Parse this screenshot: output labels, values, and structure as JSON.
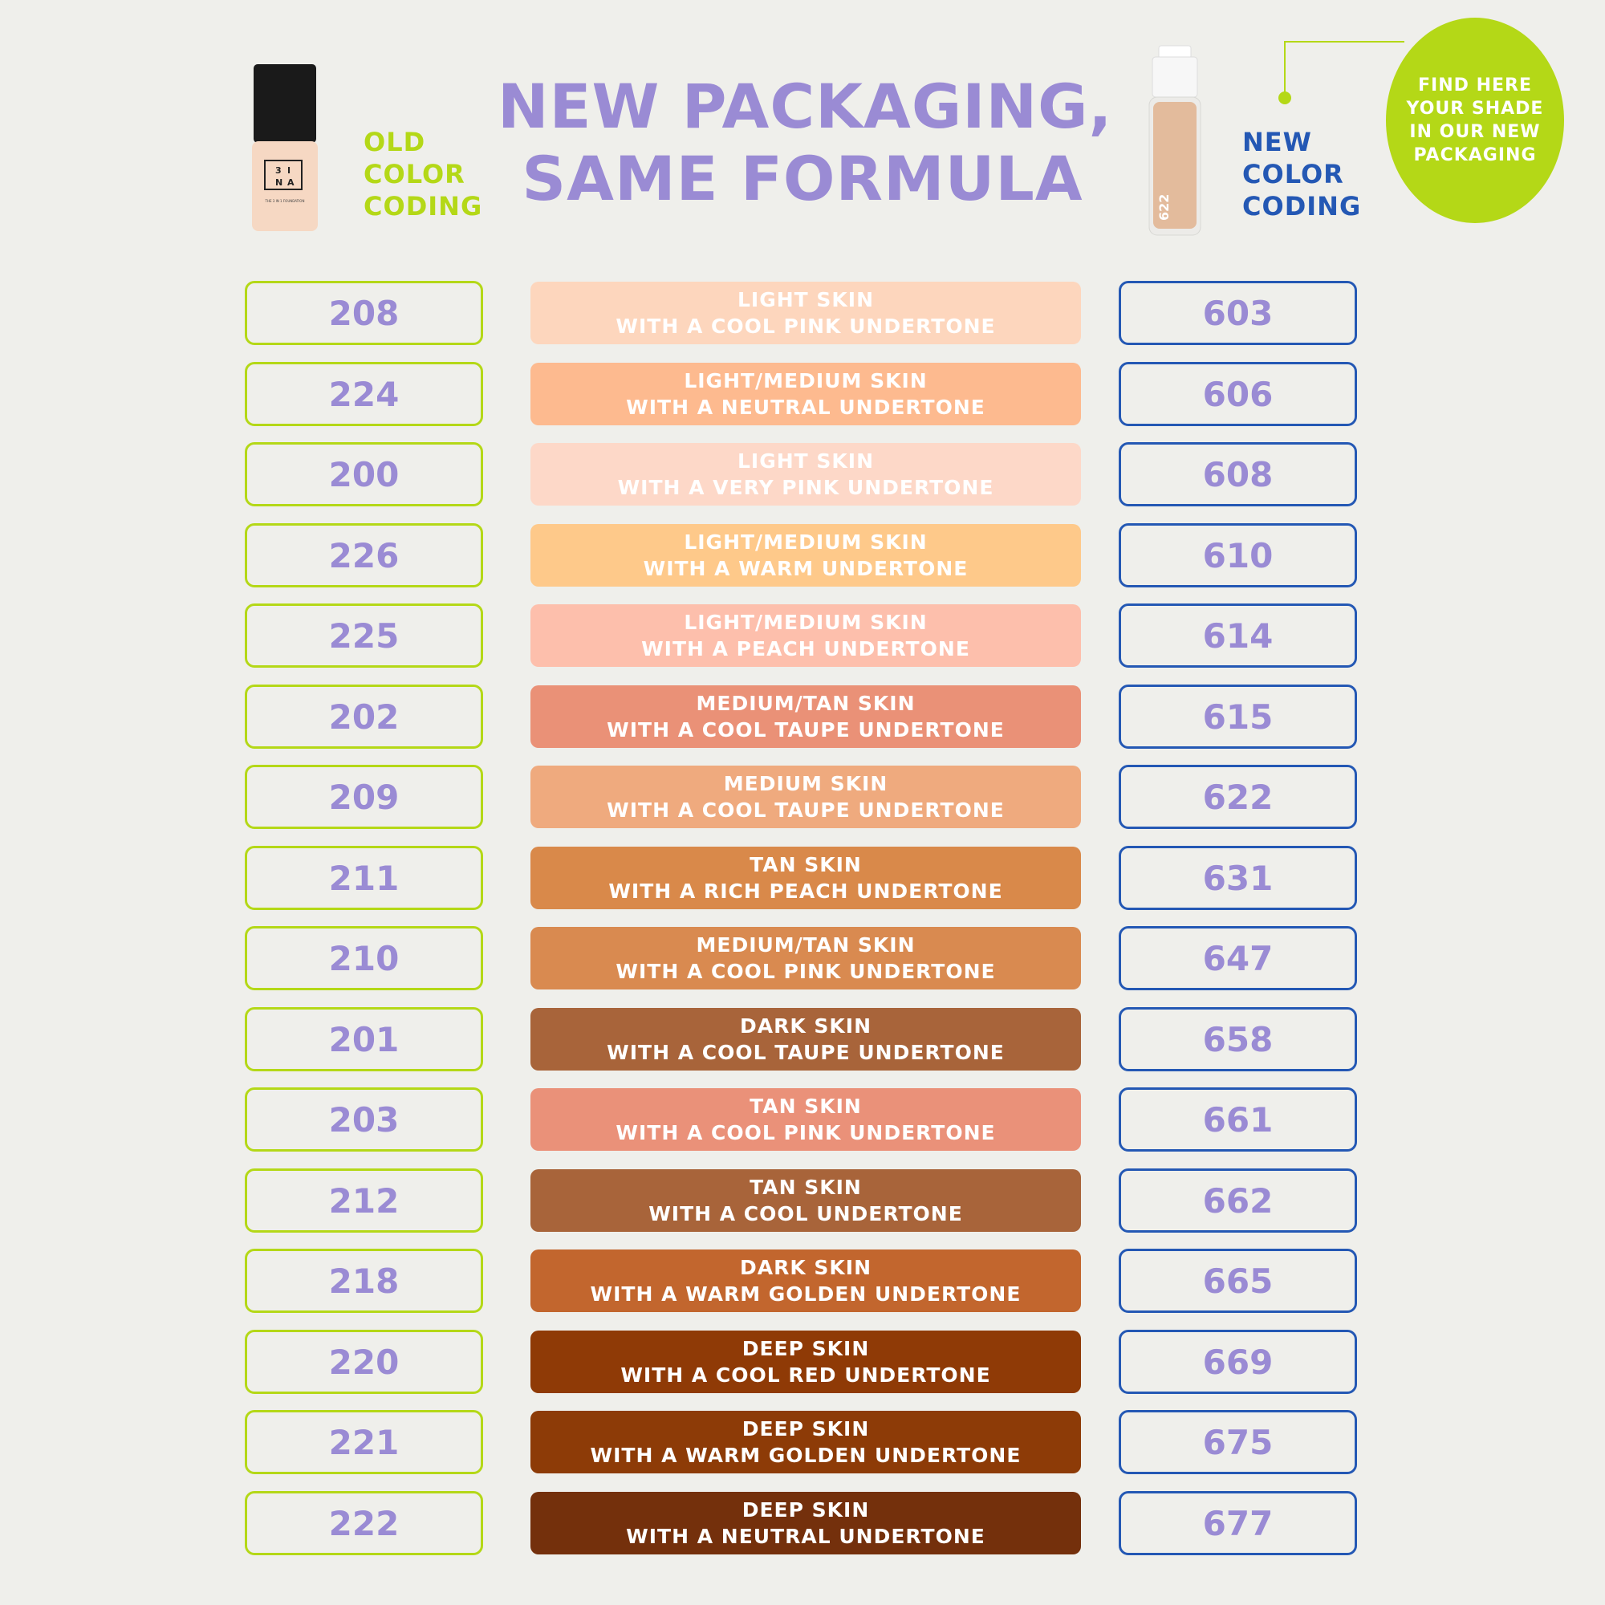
{
  "header": {
    "title_line1": "NEW PACKAGING,",
    "title_line2": "SAME FORMULA",
    "old_coding": [
      "OLD",
      "COLOR",
      "CODING"
    ],
    "new_coding": [
      "NEW",
      "COLOR",
      "CODING"
    ],
    "badge": [
      "FIND HERE",
      "YOUR SHADE",
      "IN OUR NEW",
      "PACKAGING"
    ]
  },
  "bottles": {
    "old_label_brand": [
      "3",
      "I",
      "N",
      "A"
    ],
    "old_label_text": "THE 3 IN 1 FOUNDATION",
    "new_label_code": "622"
  },
  "colors": {
    "accent_green": "#b4d817",
    "accent_blue": "#2458b4",
    "code_text": "#9a8bd4",
    "title": "#9a8bd4"
  },
  "rows": [
    {
      "old": "208",
      "line1": "LIGHT SKIN",
      "line2": "WITH A COOL PINK UNDERTONE",
      "new": "603",
      "color": "#fdd6bd"
    },
    {
      "old": "224",
      "line1": "LIGHT/MEDIUM SKIN",
      "line2": "WITH A NEUTRAL UNDERTONE",
      "new": "606",
      "color": "#fdba8f"
    },
    {
      "old": "200",
      "line1": "LIGHT SKIN",
      "line2": "WITH A VERY PINK UNDERTONE",
      "new": "608",
      "color": "#fdd8c8"
    },
    {
      "old": "226",
      "line1": "LIGHT/MEDIUM SKIN",
      "line2": "WITH A WARM UNDERTONE",
      "new": "610",
      "color": "#fec98a"
    },
    {
      "old": "225",
      "line1": "LIGHT/MEDIUM SKIN",
      "line2": "WITH A PEACH UNDERTONE",
      "new": "614",
      "color": "#fdbfac"
    },
    {
      "old": "202",
      "line1": "MEDIUM/TAN SKIN",
      "line2": "WITH A COOL TAUPE UNDERTONE",
      "new": "615",
      "color": "#ea9177"
    },
    {
      "old": "209",
      "line1": "MEDIUM SKIN",
      "line2": "WITH A COOL TAUPE UNDERTONE",
      "new": "622",
      "color": "#efaa7e"
    },
    {
      "old": "211",
      "line1": "TAN SKIN",
      "line2": "WITH A RICH PEACH UNDERTONE",
      "new": "631",
      "color": "#d9894a"
    },
    {
      "old": "210",
      "line1": "MEDIUM/TAN SKIN",
      "line2": "WITH A COOL PINK UNDERTONE",
      "new": "647",
      "color": "#d98a50"
    },
    {
      "old": "201",
      "line1": "DARK SKIN",
      "line2": "WITH A COOL TAUPE UNDERTONE",
      "new": "658",
      "color": "#a8643a"
    },
    {
      "old": "203",
      "line1": "TAN SKIN",
      "line2": "WITH A COOL PINK UNDERTONE",
      "new": "661",
      "color": "#ea9179"
    },
    {
      "old": "212",
      "line1": "TAN SKIN",
      "line2": "WITH A COOL UNDERTONE",
      "new": "662",
      "color": "#a8643a"
    },
    {
      "old": "218",
      "line1": "DARK SKIN",
      "line2": "WITH A WARM GOLDEN UNDERTONE",
      "new": "665",
      "color": "#c2662e"
    },
    {
      "old": "220",
      "line1": "DEEP SKIN",
      "line2": "WITH A COOL RED UNDERTONE",
      "new": "669",
      "color": "#8f3a06"
    },
    {
      "old": "221",
      "line1": "DEEP SKIN",
      "line2": "WITH A WARM GOLDEN UNDERTONE",
      "new": "675",
      "color": "#8d3b07"
    },
    {
      "old": "222",
      "line1": "DEEP SKIN",
      "line2": "WITH A NEUTRAL UNDERTONE",
      "new": "677",
      "color": "#74300c"
    }
  ]
}
